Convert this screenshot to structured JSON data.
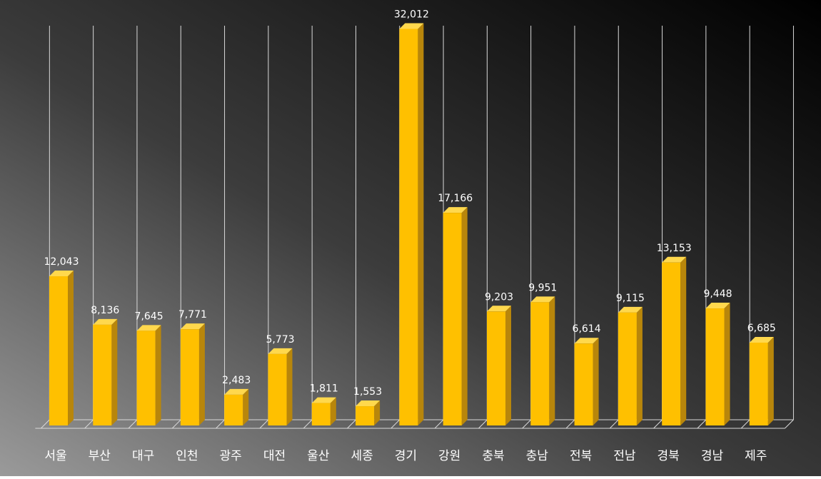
{
  "chart_data": {
    "type": "bar",
    "style": "3d-column",
    "categories": [
      "서울",
      "부산",
      "대구",
      "인천",
      "광주",
      "대전",
      "울산",
      "세종",
      "경기",
      "강원",
      "충북",
      "충남",
      "전북",
      "전남",
      "경북",
      "경남",
      "제주"
    ],
    "values": [
      12043,
      8136,
      7645,
      7771,
      2483,
      5773,
      1811,
      1553,
      32012,
      17166,
      9203,
      9951,
      6614,
      9115,
      13153,
      9448,
      6685
    ],
    "value_labels": [
      "12,043",
      "8,136",
      "7,645",
      "7,771",
      "2,483",
      "5,773",
      "1,811",
      "1,553",
      "32,012",
      "17,166",
      "9,203",
      "9,951",
      "6,614",
      "9,115",
      "13,153",
      "9,448",
      "6,685"
    ],
    "ylim": [
      0,
      34000
    ],
    "grid": "vertical-lines",
    "legend": "none",
    "colors": {
      "bar_front": "#FFC000",
      "bar_side": "#B8860B",
      "bar_top": "#FFD84D",
      "label_text": "#FFFFFF",
      "grid": "#D9D9D9",
      "bg_light": "#8C8C8C",
      "bg_dark": "#000000"
    }
  }
}
